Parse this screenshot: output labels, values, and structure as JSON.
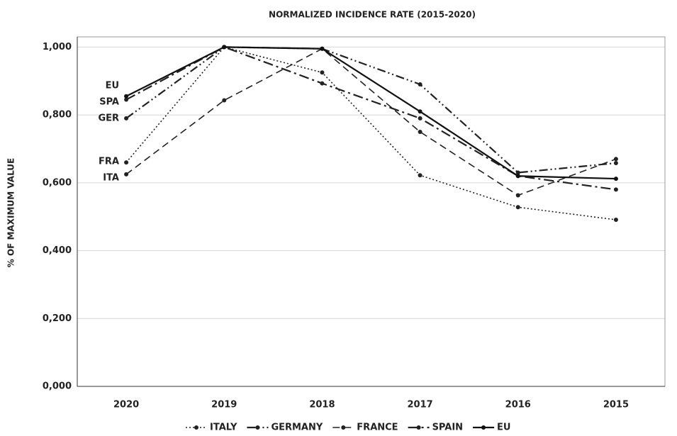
{
  "chart_data": {
    "type": "line",
    "title": "NORMALIZED INCIDENCE RATE (2015-2020)",
    "y_label": "% OF MAXIMUM VALUE",
    "categories": [
      "2020",
      "2019",
      "2018",
      "2017",
      "2016",
      "2015"
    ],
    "series": [
      {
        "name": "ITALY",
        "color": "#222222",
        "values": [
          0.66,
          1.0,
          0.925,
          0.622,
          0.528,
          0.491
        ]
      },
      {
        "name": "GERMANY",
        "color": "#222222",
        "values": [
          0.79,
          1.0,
          0.995,
          0.89,
          0.63,
          0.658
        ]
      },
      {
        "name": "FRANCE",
        "color": "#222222",
        "values": [
          0.625,
          0.843,
          0.995,
          0.75,
          0.563,
          0.67
        ]
      },
      {
        "name": "SPAIN",
        "color": "#222222",
        "values": [
          0.845,
          1.0,
          0.893,
          0.79,
          0.62,
          0.58
        ]
      },
      {
        "name": "EU",
        "color": "#111111",
        "values": [
          0.855,
          1.0,
          0.995,
          0.81,
          0.62,
          0.612
        ]
      }
    ],
    "annotations": [
      "EU",
      "SPA",
      "GER",
      "FRA",
      "ITA"
    ],
    "ylim": [
      0,
      1.03
    ],
    "yticks": [
      {
        "value": 0,
        "label": "0,000"
      },
      {
        "value": 0.2,
        "label": "0,200"
      },
      {
        "value": 0.4,
        "label": "0,400"
      },
      {
        "value": 0.6,
        "label": "0,600"
      },
      {
        "value": 0.8,
        "label": "0,800"
      },
      {
        "value": 1.0,
        "label": "1,000"
      }
    ],
    "grid": true
  }
}
